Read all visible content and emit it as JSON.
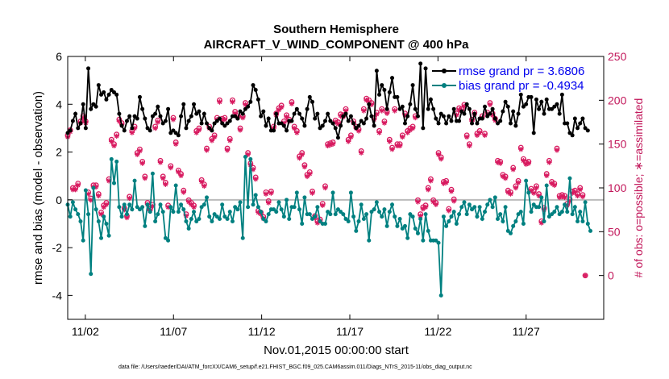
{
  "chart_data": {
    "type": "line",
    "title": "Southern Hemisphere",
    "subtitle": "AIRCRAFT_V_WIND_COMPONENT @ 400 hPa",
    "xlabel": "Nov.01,2015 00:00:00 start",
    "ylabel": "rmse and bias (model - observation)",
    "ylabel_right": "# of obs: o=possible; ∗=assimilated",
    "footer": "data file: /Users/raeder/DAI/ATM_forcXX/CAM6_setup/f.e21.FHIST_BGC.f09_025.CAM6assim.011/Diags_NTrS_2015-11/obs_diag_output.nc",
    "xlim": [
      1,
      31.4
    ],
    "ylim": [
      -5,
      6
    ],
    "ylim_right": [
      -50,
      250
    ],
    "xticks": [
      2,
      7,
      12,
      17,
      22,
      27
    ],
    "xtick_labels": [
      "11/02",
      "11/07",
      "11/12",
      "11/17",
      "11/22",
      "11/27"
    ],
    "yticks": [
      -4,
      -2,
      0,
      2,
      4,
      6
    ],
    "ytick_labels": [
      "-4",
      "-2",
      "0",
      "2",
      "4",
      "6"
    ],
    "yticks_right": [
      0,
      50,
      100,
      150,
      200,
      250
    ],
    "ytick_labels_right": [
      "0",
      "50",
      "100",
      "150",
      "200",
      "250"
    ],
    "legend_position": "top-right",
    "colors": {
      "rmse": "#000000",
      "bias": "#008080",
      "obs": "#d81b60",
      "zero": "#bbbbbb"
    },
    "series": [
      {
        "name": "rmse grand pr = 3.6806",
        "axis": "left",
        "values": [
          2.8,
          2.9,
          3.3,
          3.6,
          3.0,
          3.2,
          4.0,
          3.0,
          5.5,
          3.8,
          4.0,
          3.9,
          4.8,
          4.4,
          4.5,
          4.2,
          4.4,
          4.6,
          4.5,
          4.4,
          3.6,
          3.1,
          2.9,
          3.3,
          3.5,
          3.0,
          3.5,
          3.4,
          4.3,
          3.8,
          3.4,
          3.0,
          2.9,
          3.5,
          3.6,
          3.9,
          3.5,
          3.2,
          3.3,
          3.8,
          2.8,
          2.9,
          2.8,
          2.7,
          3.5,
          4.0,
          3.0,
          3.3,
          3.5,
          4.0,
          3.6,
          3.7,
          3.2,
          3.6,
          3.2,
          3.0,
          2.9,
          3.2,
          3.3,
          3.4,
          3.2,
          3.1,
          3.2,
          3.3,
          3.5,
          3.5,
          3.4,
          3.7,
          3.6,
          3.8,
          3.9,
          4.1,
          4.8,
          4.6,
          4.2,
          3.5,
          3.7,
          3.1,
          3.4,
          2.9,
          2.9,
          3.6,
          3.2,
          3.2,
          3.1,
          2.9,
          3.3,
          3.3,
          3.6,
          3.8,
          3.6,
          3.4,
          3.1,
          3.8,
          4.3,
          4.1,
          3.4,
          3.6,
          3.0,
          3.1,
          3.3,
          3.6,
          3.3,
          3.2,
          3.0,
          2.6,
          3.1,
          3.5,
          3.6,
          3.3,
          3.5,
          3.2,
          3.0,
          3.1,
          3.3,
          3.2,
          3.4,
          4.0,
          3.5,
          3.1,
          5.4,
          4.4,
          4.8,
          4.6,
          3.8,
          4.5,
          5.1,
          4.3,
          4.3,
          3.8,
          3.9,
          3.2,
          3.5,
          4.0,
          4.8,
          3.8,
          3.5,
          5.7,
          3.0,
          5.5,
          3.8,
          4.2,
          3.8,
          3.4,
          3.2,
          3.6,
          3.5,
          3.2,
          3.5,
          3.3,
          3.8,
          3.3,
          3.3,
          3.7,
          3.6,
          4.0,
          3.8,
          3.2,
          3.6,
          3.2,
          3.4,
          3.4,
          3.9,
          3.5,
          3.6,
          3.8,
          3.4,
          3.2,
          3.3,
          3.7,
          4.1,
          3.9,
          3.2,
          3.7,
          3.1,
          3.6,
          4.4,
          3.9,
          4.0,
          4.3,
          4.3,
          2.8,
          4.2,
          3.8,
          4.1,
          3.6,
          4.2,
          3.8,
          3.8,
          3.9,
          4.0,
          3.6,
          4.4,
          3.2,
          3.2,
          2.8,
          2.7,
          3.4,
          3.0,
          3.2,
          3.4,
          3.0,
          2.9
        ]
      },
      {
        "name": "bias grand pr = -0.4934",
        "axis": "left",
        "values": [
          -0.2,
          -0.7,
          -0.1,
          -0.4,
          -0.6,
          -0.9,
          -1.7,
          0.4,
          -0.6,
          -3.1,
          0.5,
          -0.4,
          -0.9,
          -1.6,
          -0.7,
          -1.0,
          -1.5,
          1.7,
          0.7,
          1.6,
          -0.3,
          -0.7,
          -0.2,
          -0.6,
          -0.2,
          -0.4,
          0.8,
          -0.3,
          -0.4,
          -0.3,
          -1.1,
          -0.2,
          -0.5,
          1.1,
          -0.9,
          -0.6,
          -0.2,
          -0.5,
          -1.6,
          -1.7,
          -0.3,
          -0.5,
          0.6,
          -0.5,
          -0.2,
          -0.4,
          -0.9,
          -1.2,
          -0.8,
          -0.5,
          -0.9,
          -0.8,
          -0.3,
          -0.2,
          0.1,
          -0.7,
          -0.9,
          -0.6,
          -0.7,
          -0.8,
          -0.2,
          -0.7,
          -0.8,
          -0.5,
          -0.9,
          -0.3,
          -0.4,
          -0.1,
          -1.6,
          1.8,
          -0.3,
          1.7,
          -0.2,
          0.2,
          -0.3,
          -0.5,
          -0.8,
          -0.9,
          -0.6,
          -0.4,
          -0.4,
          -0.5,
          -0.1,
          -0.4,
          -0.7,
          0.0,
          -0.8,
          -0.3,
          -0.3,
          0.3,
          -0.4,
          -1.0,
          0.1,
          -0.6,
          -0.6,
          -0.8,
          -0.7,
          -0.3,
          -0.9,
          -1.0,
          -1.0,
          -0.5,
          -0.6,
          0.3,
          -0.6,
          -0.4,
          -0.5,
          -0.6,
          -0.8,
          -0.9,
          0.3,
          -0.7,
          -1.3,
          -0.9,
          -0.2,
          -0.8,
          -0.6,
          -1.7,
          -0.5,
          -0.4,
          -0.1,
          -0.5,
          -0.7,
          -0.4,
          -1.1,
          -0.5,
          -0.2,
          -0.7,
          -1.1,
          -0.8,
          -1.2,
          -1.1,
          -1.6,
          -0.6,
          -0.7,
          -1.2,
          -1.4,
          -0.8,
          -1.7,
          -0.6,
          -1.3,
          -1.7,
          -1.7,
          -1.7,
          -1.8,
          -4.0,
          -0.7,
          -1.1,
          -0.9,
          -0.7,
          -0.5,
          -1.0,
          -0.6,
          -0.3,
          -0.1,
          -0.6,
          -0.2,
          -0.4,
          -0.3,
          -0.7,
          -0.3,
          -0.8,
          -0.5,
          -0.2,
          0.0,
          -0.3,
          0.1,
          -0.8,
          -0.6,
          -0.9,
          -0.3,
          -1.3,
          -1.4,
          -1.1,
          -0.9,
          -0.6,
          -0.5,
          -1.0,
          0.8,
          0.3,
          -0.5,
          -0.2,
          -0.3,
          -0.3,
          0.1,
          -0.9,
          0.6,
          -0.7,
          -0.6,
          -0.5,
          -0.3,
          -0.6,
          -0.5,
          -0.2,
          -0.5,
          0.9,
          -0.6,
          -0.3,
          -0.9,
          -0.5,
          -0.9,
          -0.1,
          -1.0,
          -1.3
        ]
      },
      {
        "name": "obs possible",
        "axis": "right",
        "marker": "o",
        "values": [
          160,
          166,
          100,
          100,
          105,
          176,
          182,
          176,
          95,
          88,
          103,
          103,
          93,
          72,
          80,
          83,
          110,
          155,
          150,
          161,
          178,
          174,
          77,
          68,
          90,
          165,
          170,
          140,
          144,
          130,
          113,
          83,
          76,
          81,
          170,
          177,
          131,
          113,
          106,
          80,
          125,
          180,
          152,
          120,
          116,
          97,
          70,
          86,
          83,
          80,
          165,
          168,
          109,
          104,
          145,
          170,
          156,
          160,
          180,
          200,
          179,
          180,
          145,
          156,
          200,
          187,
          182,
          168,
          182,
          197,
          140,
          128,
          123,
          112,
          74,
          72,
          67,
          95,
          85,
          96,
          170,
          185,
          191,
          194,
          176,
          183,
          178,
          198,
          170,
          165,
          136,
          140,
          126,
          115,
          118,
          96,
          68,
          62,
          64,
          82,
          102,
          150,
          151,
          152,
          177,
          175,
          184,
          183,
          190,
          155,
          160,
          176,
          170,
          167,
          142,
          190,
          202,
          200,
          197,
          180,
          186,
          165,
          190,
          176,
          187,
          155,
          146,
          190,
          150,
          150,
          160,
          185,
          165,
          168,
          170,
          182,
          86,
          70,
          78,
          80,
          100,
          110,
          86,
          83,
          140,
          135,
          107,
          108,
          76,
          98,
          87,
          185,
          191,
          190,
          195,
          160,
          150,
          178,
          186,
          162,
          165,
          182,
          162,
          186,
          197,
          185,
          179,
          131,
          130,
          115,
          113,
          97,
          95,
          123,
          102,
          108,
          146,
          133,
          129,
          130,
          99,
          96,
          102,
          93,
          62,
          77,
          116,
          131,
          107,
          105,
          145,
          91,
          92,
          91,
          82,
          87,
          96,
          97,
          93,
          100,
          92,
          0
        ]
      },
      {
        "name": "obs assimilated",
        "axis": "right",
        "marker": "*",
        "values": [
          158,
          164,
          98,
          98,
          103,
          174,
          180,
          174,
          93,
          86,
          101,
          101,
          91,
          70,
          78,
          81,
          108,
          153,
          148,
          159,
          176,
          172,
          75,
          66,
          88,
          163,
          168,
          138,
          142,
          128,
          111,
          81,
          74,
          79,
          168,
          175,
          129,
          111,
          104,
          78,
          123,
          178,
          150,
          118,
          114,
          95,
          68,
          84,
          81,
          78,
          163,
          166,
          107,
          102,
          143,
          168,
          154,
          158,
          178,
          198,
          177,
          178,
          143,
          154,
          198,
          185,
          180,
          166,
          180,
          195,
          138,
          126,
          121,
          110,
          72,
          70,
          65,
          93,
          83,
          94,
          168,
          183,
          189,
          192,
          174,
          181,
          176,
          196,
          168,
          163,
          134,
          138,
          124,
          113,
          116,
          94,
          66,
          60,
          62,
          80,
          100,
          148,
          149,
          150,
          175,
          173,
          182,
          181,
          188,
          153,
          158,
          174,
          168,
          165,
          140,
          188,
          200,
          198,
          195,
          178,
          184,
          163,
          188,
          174,
          185,
          153,
          144,
          188,
          148,
          148,
          158,
          183,
          163,
          166,
          168,
          180,
          84,
          68,
          76,
          78,
          98,
          108,
          84,
          81,
          138,
          133,
          105,
          106,
          74,
          96,
          85,
          183,
          189,
          188,
          193,
          158,
          148,
          176,
          184,
          160,
          163,
          180,
          160,
          184,
          195,
          183,
          177,
          129,
          128,
          113,
          111,
          95,
          93,
          121,
          100,
          106,
          144,
          131,
          127,
          128,
          97,
          94,
          100,
          91,
          60,
          75,
          114,
          129,
          105,
          103,
          143,
          89,
          90,
          89,
          80,
          85,
          94,
          95,
          91,
          98,
          90,
          0
        ]
      }
    ]
  }
}
